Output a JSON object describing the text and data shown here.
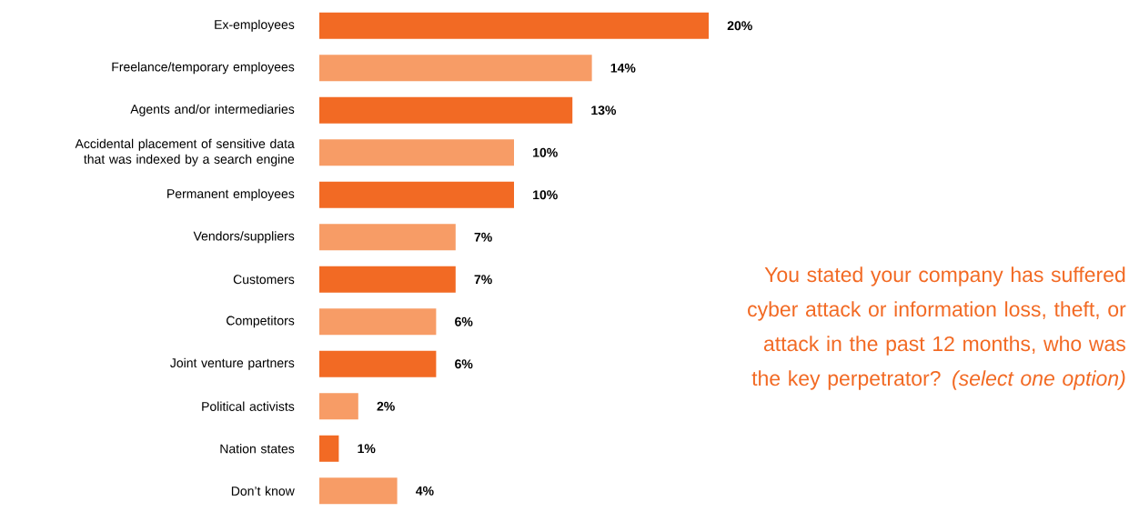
{
  "chart_data": {
    "type": "bar",
    "orientation": "horizontal",
    "title": "You stated your company has suffered cyber attack or information loss, theft, or attack in the past 12 months, who was the key perpetrator? *(select one option)*",
    "categories": [
      "Ex-employees",
      "Freelance/temporary employees",
      "Agents and/or intermediaries",
      "Accidental placement of sensitive data that was indexed by a search engine",
      "Permanent employees",
      "Vendors/suppliers",
      "Customers",
      "Competitors",
      "Joint venture partners",
      "Political activists",
      "Nation states",
      "Don’t know"
    ],
    "values": [
      20,
      14,
      13,
      10,
      10,
      7,
      7,
      6,
      6,
      2,
      1,
      4
    ],
    "value_labels": [
      "20%",
      "14%",
      "13%",
      "10%",
      "10%",
      "7%",
      "7%",
      "6%",
      "6%",
      "2%",
      "1%",
      "4%"
    ],
    "colors": [
      "#f26a24",
      "#f79c66",
      "#f26a24",
      "#f79c66",
      "#f26a24",
      "#f79c66",
      "#f26a24",
      "#f79c66",
      "#f26a24",
      "#f79c66",
      "#f26a24",
      "#f79c66"
    ]
  }
}
